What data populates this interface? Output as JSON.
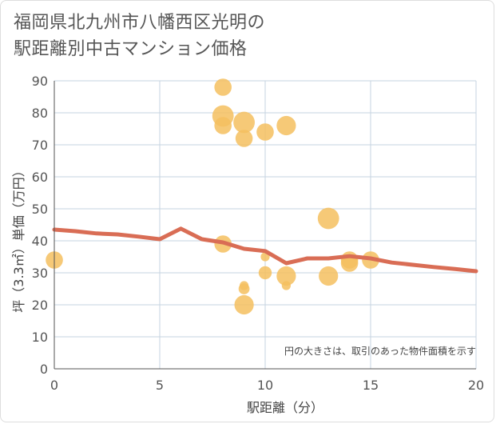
{
  "chart_data": {
    "type": "scatter",
    "title": "福岡県北九州市八幡西区光明の\n駅距離別中古マンション価格",
    "xlabel": "駅距離（分）",
    "ylabel": "坪（3.3㎡）単価（万円）",
    "xlim": [
      0,
      20
    ],
    "ylim": [
      0,
      90
    ],
    "xticks": [
      0,
      5,
      10,
      15,
      20
    ],
    "yticks": [
      0,
      10,
      20,
      30,
      40,
      50,
      60,
      70,
      80,
      90
    ],
    "grid": true,
    "note": "円の大きさは、取引のあった物件面積を示す",
    "colors": {
      "bubble": "#f5bf5f",
      "trend": "#d96d55",
      "grid": "#c5d3e0"
    },
    "series": [
      {
        "kind": "bubble",
        "points": [
          {
            "x": 0,
            "y": 34,
            "size": 3
          },
          {
            "x": 8,
            "y": 88,
            "size": 3
          },
          {
            "x": 8,
            "y": 79,
            "size": 4
          },
          {
            "x": 8,
            "y": 76,
            "size": 3
          },
          {
            "x": 8,
            "y": 39,
            "size": 3
          },
          {
            "x": 9,
            "y": 77,
            "size": 4
          },
          {
            "x": 9,
            "y": 72,
            "size": 3
          },
          {
            "x": 9,
            "y": 26,
            "size": 1
          },
          {
            "x": 9,
            "y": 25,
            "size": 1.5
          },
          {
            "x": 9,
            "y": 20,
            "size": 3.5
          },
          {
            "x": 10,
            "y": 74,
            "size": 3
          },
          {
            "x": 10,
            "y": 35,
            "size": 1
          },
          {
            "x": 10,
            "y": 30,
            "size": 2
          },
          {
            "x": 11,
            "y": 76,
            "size": 3.5
          },
          {
            "x": 11,
            "y": 29,
            "size": 3.5
          },
          {
            "x": 11,
            "y": 26,
            "size": 1
          },
          {
            "x": 13,
            "y": 47,
            "size": 4
          },
          {
            "x": 13,
            "y": 29,
            "size": 3.5
          },
          {
            "x": 14,
            "y": 34,
            "size": 3
          },
          {
            "x": 14,
            "y": 33,
            "size": 3
          },
          {
            "x": 15,
            "y": 34,
            "size": 3
          }
        ]
      },
      {
        "kind": "line",
        "points": [
          {
            "x": 0,
            "y": 43.5
          },
          {
            "x": 1,
            "y": 43
          },
          {
            "x": 2,
            "y": 42.3
          },
          {
            "x": 3,
            "y": 42
          },
          {
            "x": 4,
            "y": 41.3
          },
          {
            "x": 5,
            "y": 40.5
          },
          {
            "x": 6,
            "y": 43.8
          },
          {
            "x": 7,
            "y": 40.5
          },
          {
            "x": 8,
            "y": 39.5
          },
          {
            "x": 9,
            "y": 37.5
          },
          {
            "x": 10,
            "y": 36.8
          },
          {
            "x": 11,
            "y": 33
          },
          {
            "x": 12,
            "y": 34.5
          },
          {
            "x": 13,
            "y": 34.5
          },
          {
            "x": 14,
            "y": 35.2
          },
          {
            "x": 15,
            "y": 34.5
          },
          {
            "x": 16,
            "y": 33.2
          },
          {
            "x": 17,
            "y": 32.5
          },
          {
            "x": 18,
            "y": 31.8
          },
          {
            "x": 19,
            "y": 31.2
          },
          {
            "x": 20,
            "y": 30.5
          }
        ]
      }
    ]
  }
}
